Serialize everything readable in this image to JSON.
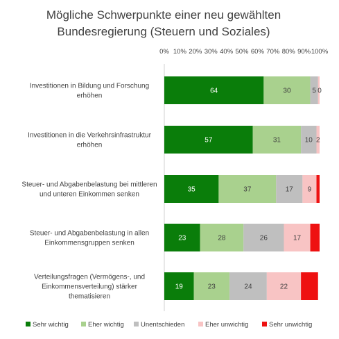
{
  "chart_data": {
    "type": "bar",
    "orientation": "horizontal",
    "stacked": true,
    "title": [
      "Mögliche Schwerpunkte einer neu gewählten",
      "Bundesregierung (Steuern und Soziales)"
    ],
    "xlim": [
      0,
      100
    ],
    "x_ticks": [
      "0%",
      "10%",
      "20%",
      "30%",
      "40%",
      "50%",
      "60%",
      "70%",
      "80%",
      "90%",
      "100%"
    ],
    "x_axis_position": "top",
    "grid": false,
    "legend_position": "bottom",
    "categories": [
      [
        "Investitionen in Bildung und Forschung",
        "erhöhen"
      ],
      [
        "Investitionen in die Verkehrsinfrastruktur",
        "erhöhen"
      ],
      [
        "Steuer- und Abgabenbelastung bei mittleren",
        "und unteren Einkommen senken"
      ],
      [
        "Steuer- und Abgabenbelastung in allen",
        "Einkommensgruppen senken"
      ],
      [
        "Verteilungsfragen (Vermögens-, und",
        "Einkommensverteilung) stärker",
        "thematisieren"
      ]
    ],
    "series": [
      {
        "name": "Sehr wichtig",
        "color": "#0a7d0a",
        "label_color": "#ffffff",
        "values": [
          64,
          57,
          35,
          23,
          19
        ],
        "labels": [
          "64",
          "57",
          "35",
          "23",
          "19"
        ]
      },
      {
        "name": "Eher wichtig",
        "color": "#a9d18e",
        "label_color": "#404040",
        "values": [
          30,
          31,
          37,
          28,
          23
        ],
        "labels": [
          "30",
          "31",
          "37",
          "28",
          "23"
        ]
      },
      {
        "name": "Unentschieden",
        "color": "#bfbfbf",
        "label_color": "#404040",
        "values": [
          5,
          10,
          17,
          26,
          24
        ],
        "labels": [
          "5",
          "10",
          "17",
          "26",
          "24"
        ]
      },
      {
        "name": "Eher unwichtig",
        "color": "#f8c4c4",
        "label_color": "#404040",
        "values": [
          1,
          2,
          9,
          17,
          22
        ],
        "labels": [
          "",
          "2",
          "9",
          "17",
          "22"
        ]
      },
      {
        "name": "Sehr unwichtig",
        "color": "#ee1111",
        "label_color": "#404040",
        "values": [
          0,
          0,
          2,
          6,
          11
        ],
        "labels": [
          "0",
          "",
          "",
          "",
          ""
        ]
      }
    ]
  }
}
